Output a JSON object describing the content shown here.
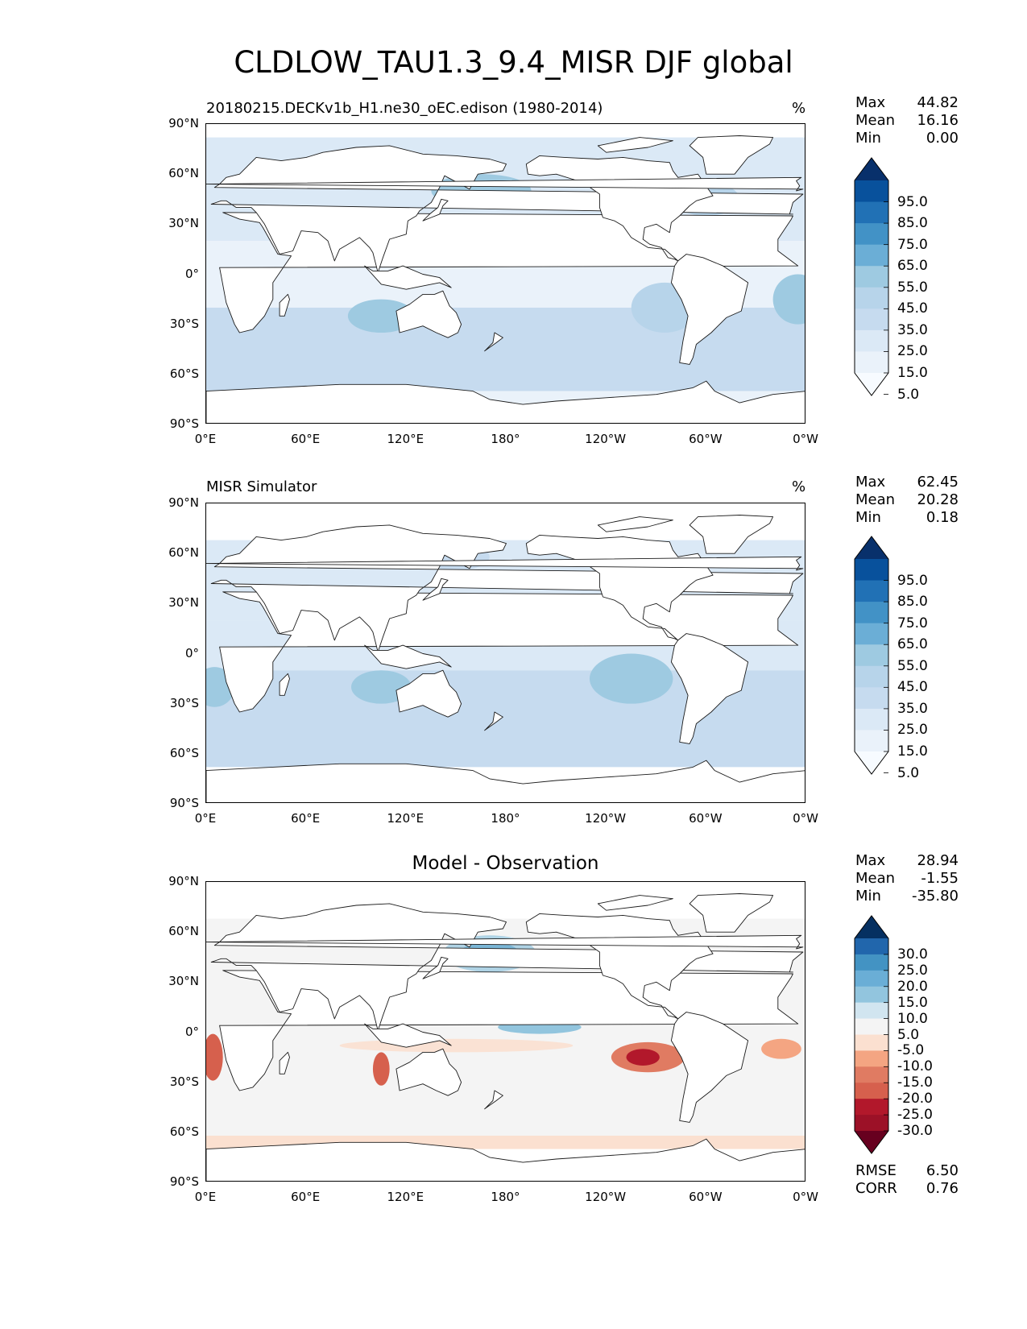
{
  "figure_title": "CLDLOW_TAU1.3_9.4_MISR DJF global",
  "lat_ticks": [
    "90°N",
    "60°N",
    "30°N",
    "0°",
    "30°S",
    "60°S",
    "90°S"
  ],
  "lon_ticks": [
    "0°E",
    "60°E",
    "120°E",
    "180°",
    "120°W",
    "60°W",
    "0°W"
  ],
  "panels": [
    {
      "id": "test",
      "title": "20180215.DECKv1b_H1.ne30_oEC.edison (1980-2014)",
      "unit": "%",
      "stats": [
        {
          "label": "Max",
          "value": "44.82"
        },
        {
          "label": "Mean",
          "value": "16.16"
        },
        {
          "label": "Min",
          "value": "0.00"
        }
      ],
      "colorbar": {
        "labels": [
          "95.0",
          "85.0",
          "75.0",
          "65.0",
          "55.0",
          "45.0",
          "35.0",
          "25.0",
          "15.0",
          "5.0"
        ],
        "colors": [
          "#08306b",
          "#08519c",
          "#2171b5",
          "#4292c6",
          "#6baed6",
          "#9ecae1",
          "#b7d4ea",
          "#c6dbef",
          "#dbe9f6",
          "#eaf2fa",
          "#f7fbff"
        ]
      }
    },
    {
      "id": "reference",
      "title": "MISR Simulator",
      "unit": "%",
      "stats": [
        {
          "label": "Max",
          "value": "62.45"
        },
        {
          "label": "Mean",
          "value": "20.28"
        },
        {
          "label": "Min",
          "value": "0.18"
        }
      ],
      "colorbar": {
        "labels": [
          "95.0",
          "85.0",
          "75.0",
          "65.0",
          "55.0",
          "45.0",
          "35.0",
          "25.0",
          "15.0",
          "5.0"
        ],
        "colors": [
          "#08306b",
          "#08519c",
          "#2171b5",
          "#4292c6",
          "#6baed6",
          "#9ecae1",
          "#b7d4ea",
          "#c6dbef",
          "#dbe9f6",
          "#eaf2fa",
          "#f7fbff"
        ]
      }
    },
    {
      "id": "difference",
      "title": "Model - Observation",
      "unit": "",
      "stats": [
        {
          "label": "Max",
          "value": "28.94"
        },
        {
          "label": "Mean",
          "value": "-1.55"
        },
        {
          "label": "Min",
          "value": "-35.80"
        }
      ],
      "extra_stats": [
        {
          "label": "RMSE",
          "value": "6.50"
        },
        {
          "label": "CORR",
          "value": "0.76"
        }
      ],
      "colorbar": {
        "labels": [
          "30.0",
          "25.0",
          "20.0",
          "15.0",
          "10.0",
          "5.0",
          "-5.0",
          "-10.0",
          "-15.0",
          "-20.0",
          "-25.0",
          "-30.0"
        ],
        "colors": [
          "#053061",
          "#2166ac",
          "#4393c3",
          "#6aaed6",
          "#92c5de",
          "#d1e5f0",
          "#f4f4f4",
          "#fbe0d0",
          "#f4a582",
          "#e07b62",
          "#d6604d",
          "#b2182b",
          "#9c1127",
          "#67001f"
        ]
      }
    }
  ]
}
